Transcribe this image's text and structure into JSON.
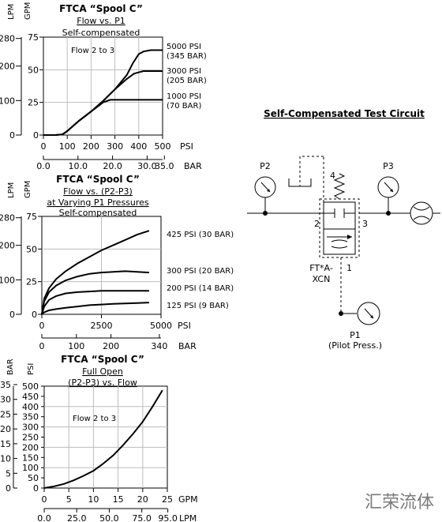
{
  "charts": {
    "c1": {
      "title": "FTCA “Spool C”",
      "subtitle1": "Flow vs. P1",
      "subtitle2": "Self-compensated",
      "ylabel_lpm": "LPM",
      "ylabel_gpm": "GPM",
      "annotation": "Flow 2 to 3",
      "psi_unit": "PSI",
      "bar_unit": "BAR",
      "lpm_ticks": [
        "0",
        "100",
        "200",
        "280"
      ],
      "gpm_ticks": [
        "0",
        "25",
        "50",
        "75"
      ],
      "psi_ticks": [
        "0",
        "100",
        "200",
        "300",
        "400",
        "500"
      ],
      "bar_ticks": [
        "0.0",
        "10.0",
        "20.0",
        "30.0",
        "35.0"
      ],
      "series_labels": [
        {
          "line1": "5000 PSI",
          "line2": "(345 BAR)"
        },
        {
          "line1": "3000 PSI",
          "line2": "(205 BAR)"
        },
        {
          "line1": "1000 PSI",
          "line2": "(70 BAR)"
        }
      ]
    },
    "c2": {
      "title": "FTCA “Spool C”",
      "subtitle1": "Flow vs. (P2-P3)",
      "subtitle2": "at Varying P1 Pressures",
      "subtitle3": "Self-compensated",
      "ylabel_lpm": "LPM",
      "ylabel_gpm": "GPM",
      "psi_unit": "PSI",
      "bar_unit": "BAR",
      "lpm_ticks": [
        "0",
        "100",
        "200",
        "280"
      ],
      "gpm_ticks": [
        "0",
        "25",
        "50",
        "75"
      ],
      "psi_ticks": [
        "0",
        "2500",
        "5000"
      ],
      "bar_ticks": [
        "0",
        "100",
        "200",
        "340"
      ],
      "series_labels": [
        "425 PSI (30 BAR)",
        "300 PSI (20 BAR)",
        "200 PSI (14 BAR)",
        "125 PSI (9 BAR)"
      ]
    },
    "c3": {
      "title": "FTCA “Spool C”",
      "subtitle1": "Full Open",
      "subtitle2": "(P2-P3) vs. Flow",
      "ylabel_bar": "BAR",
      "ylabel_psi": "PSI",
      "annotation": "Flow 2 to 3",
      "gpm_unit": "GPM",
      "lpm_unit": "LPM",
      "psi_ticks": [
        "0",
        "50",
        "100",
        "150",
        "200",
        "250",
        "300",
        "350",
        "400",
        "450",
        "500"
      ],
      "bar_ticks": [
        "0",
        "5",
        "10",
        "15",
        "20",
        "25",
        "30",
        "35"
      ],
      "gpm_ticks": [
        "0",
        "5",
        "10",
        "15",
        "20",
        "25"
      ],
      "lpm_ticks": [
        "0.0",
        "25.0",
        "50.0",
        "75.0",
        "95.0"
      ]
    }
  },
  "chart_data": [
    {
      "type": "line",
      "title": "FTCA “Spool C” Flow vs. P1",
      "xlabel": "PSI",
      "ylabel": "GPM",
      "xlim": [
        0,
        500
      ],
      "ylim": [
        0,
        75
      ],
      "series": [
        {
          "name": "5000 PSI (345 BAR)",
          "x": [
            0,
            50,
            80,
            100,
            150,
            200,
            250,
            300,
            350,
            375,
            400,
            420,
            450,
            500
          ],
          "y": [
            0,
            0,
            0.5,
            3,
            11,
            18,
            26,
            35,
            46,
            55,
            62,
            64,
            65,
            65
          ]
        },
        {
          "name": "3000 PSI (205 BAR)",
          "x": [
            0,
            50,
            80,
            100,
            150,
            200,
            250,
            300,
            350,
            380,
            400,
            420,
            450,
            500
          ],
          "y": [
            0,
            0,
            0.5,
            3,
            11,
            18,
            26,
            35,
            43,
            47,
            48,
            49,
            49,
            49
          ]
        },
        {
          "name": "1000 PSI (70 BAR)",
          "x": [
            0,
            50,
            80,
            100,
            150,
            200,
            250,
            280,
            300,
            350,
            400,
            450,
            500
          ],
          "y": [
            0,
            0,
            0.5,
            3,
            11,
            18,
            25,
            27,
            27,
            27,
            27,
            27,
            27
          ]
        }
      ]
    },
    {
      "type": "line",
      "title": "FTCA “Spool C” Flow vs. (P2-P3) at Varying P1 Pressures",
      "xlabel": "PSI",
      "ylabel": "GPM",
      "xlim": [
        0,
        5000
      ],
      "ylim": [
        0,
        75
      ],
      "series": [
        {
          "name": "425 PSI (30 BAR)",
          "x": [
            0,
            100,
            300,
            600,
            1000,
            1500,
            2000,
            2500,
            3000,
            3500,
            4000,
            4500
          ],
          "y": [
            0,
            12,
            20,
            27,
            33,
            39,
            44,
            49,
            53,
            57,
            61,
            64
          ]
        },
        {
          "name": "300 PSI (20 BAR)",
          "x": [
            0,
            100,
            300,
            600,
            1000,
            1500,
            2000,
            2500,
            3000,
            3500,
            4000,
            4500
          ],
          "y": [
            0,
            10,
            17,
            22,
            26,
            29,
            31,
            32,
            32.5,
            33,
            32.5,
            32
          ]
        },
        {
          "name": "200 PSI (14 BAR)",
          "x": [
            0,
            100,
            300,
            600,
            1000,
            1500,
            2000,
            2500,
            3000,
            3500,
            4000,
            4500
          ],
          "y": [
            0,
            6,
            11,
            14,
            16,
            17,
            17.5,
            18,
            18,
            18,
            18,
            18
          ]
        },
        {
          "name": "125 PSI (9 BAR)",
          "x": [
            0,
            100,
            300,
            600,
            1000,
            1500,
            2000,
            2500,
            3000,
            3500,
            4000,
            4500
          ],
          "y": [
            0,
            1.5,
            3,
            4,
            5,
            6,
            7,
            7.5,
            8,
            8.3,
            8.6,
            9
          ]
        }
      ]
    },
    {
      "type": "line",
      "title": "FTCA “Spool C” Full Open (P2-P3) vs. Flow",
      "xlabel": "GPM",
      "ylabel": "PSI",
      "xlim": [
        0,
        25
      ],
      "ylim": [
        0,
        500
      ],
      "series": [
        {
          "name": "",
          "x": [
            0,
            2,
            4,
            6,
            8,
            10,
            12,
            14,
            16,
            18,
            20,
            22,
            24
          ],
          "y": [
            0,
            8,
            20,
            38,
            60,
            85,
            120,
            160,
            210,
            265,
            325,
            400,
            480
          ]
        }
      ]
    }
  ],
  "circuit": {
    "heading": "Self-Compensated Test Circuit",
    "p2": "P2",
    "p3": "P3",
    "p1": "P1",
    "p1_note": "(Pilot Press.)",
    "port2": "2",
    "port3": "3",
    "port4": "4",
    "port1": "1",
    "valve_line1": "FT*A-",
    "valve_line2": "XCN"
  },
  "watermark": "汇荣流体"
}
